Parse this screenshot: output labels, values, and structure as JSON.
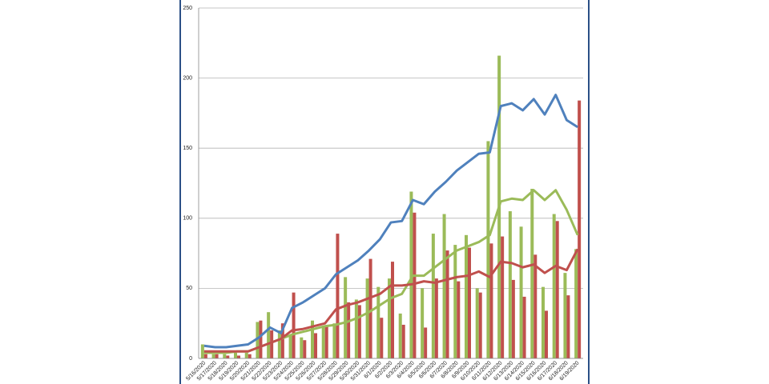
{
  "chart_data": {
    "type": "combo",
    "categories": [
      "5/16/2020",
      "5/17/2020",
      "5/18/2020",
      "5/19/2020",
      "5/20/2020",
      "5/21/2020",
      "5/22/2020",
      "5/23/2020",
      "5/24/2020",
      "5/25/2020",
      "5/26/2020",
      "5/27/2020",
      "5/28/2020",
      "5/29/2020",
      "5/30/2020",
      "5/31/2020",
      "6/1/2020",
      "6/2/2020",
      "6/3/2020",
      "6/4/2020",
      "6/5/2020",
      "6/6/2020",
      "6/7/2020",
      "6/8/2020",
      "6/9/2020",
      "6/10/2020",
      "6/11/2020",
      "6/12/2020",
      "6/13/2020",
      "6/14/2020",
      "6/15/2020",
      "6/16/2020",
      "6/17/2020",
      "6/18/2020",
      "6/19/2020"
    ],
    "series": [
      {
        "type": "bar",
        "color": "#9bbb59",
        "values": [
          10,
          3,
          3,
          4,
          4,
          26,
          33,
          20,
          16,
          15,
          27,
          23,
          25,
          58,
          42,
          57,
          51,
          57,
          32,
          119,
          50,
          89,
          103,
          81,
          88,
          50,
          155,
          216,
          105,
          94,
          121,
          51,
          103,
          61,
          78
        ]
      },
      {
        "type": "bar",
        "color": "#c0504d",
        "values": [
          3,
          3,
          2,
          2,
          3,
          27,
          20,
          25,
          47,
          13,
          18,
          23,
          89,
          40,
          38,
          71,
          29,
          69,
          24,
          104,
          22,
          57,
          77,
          55,
          79,
          47,
          82,
          87,
          56,
          44,
          74,
          34,
          98,
          45,
          184
        ]
      },
      {
        "type": "line",
        "color": "#4f81bd",
        "values": [
          9,
          8,
          8,
          9,
          10,
          15,
          22,
          18,
          36,
          40,
          45,
          50,
          60,
          65,
          70,
          77,
          85,
          97,
          98,
          113,
          110,
          119,
          126,
          134,
          140,
          146,
          147,
          180,
          182,
          177,
          185,
          174,
          188,
          170,
          165
        ]
      },
      {
        "type": "line",
        "color": "#9bbb59",
        "values": [
          4,
          4,
          4,
          5,
          5,
          8,
          11,
          14,
          17,
          19,
          21,
          23,
          24,
          26,
          29,
          33,
          38,
          43,
          46,
          59,
          59,
          65,
          71,
          77,
          80,
          83,
          88,
          112,
          114,
          113,
          120,
          113,
          120,
          106,
          88
        ]
      },
      {
        "type": "line",
        "color": "#c0504d",
        "values": [
          5,
          5,
          5,
          5,
          5,
          8,
          11,
          14,
          20,
          21,
          23,
          25,
          35,
          38,
          40,
          43,
          46,
          52,
          52,
          53,
          55,
          54,
          56,
          58,
          59,
          62,
          58,
          69,
          68,
          65,
          67,
          61,
          66,
          63,
          78
        ]
      }
    ],
    "ylim": [
      0,
      250
    ],
    "yticks": [
      0,
      50,
      100,
      150,
      200,
      250
    ],
    "grid": true
  }
}
